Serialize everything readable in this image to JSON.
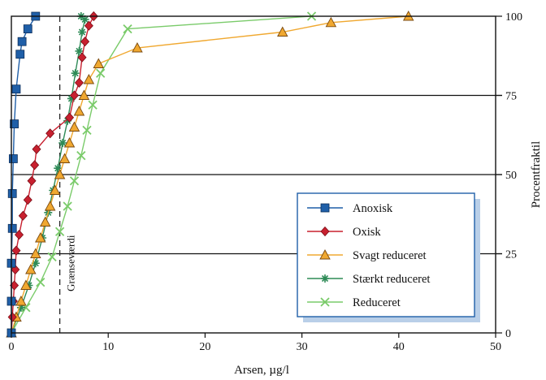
{
  "chart_data": {
    "type": "line",
    "xlabel": "Arsen, µg/l",
    "ylabel": "Procentfraktil",
    "xlim": [
      0,
      50
    ],
    "ylim": [
      0,
      100
    ],
    "x_ticks": [
      "0",
      "10",
      "20",
      "30",
      "40",
      "50"
    ],
    "y_ticks": [
      "0",
      "25",
      "50",
      "75",
      "100"
    ],
    "grid": "horizontal at 25, 50, 75",
    "legend_position": "lower-right",
    "threshold": {
      "x": 5,
      "label": "Grænseværdi",
      "style": "dashed"
    },
    "series": [
      {
        "name": "Anoxisk",
        "color": "#1f5fa8",
        "marker": "square",
        "x": [
          0,
          0,
          0,
          0.1,
          0.1,
          0.2,
          0.3,
          0.5,
          0.9,
          1.1,
          1.7,
          2.5
        ],
        "y": [
          0,
          10,
          22,
          33,
          44,
          55,
          66,
          77,
          88,
          92,
          96,
          100
        ]
      },
      {
        "name": "Oxisk",
        "color": "#c8202f",
        "marker": "diamond",
        "x": [
          0,
          0.1,
          0.2,
          0.3,
          0.4,
          0.5,
          0.8,
          1.2,
          1.7,
          2.1,
          2.4,
          2.6,
          4.0,
          6.0,
          6.5,
          7.0,
          7.3,
          7.6,
          8.0,
          8.5
        ],
        "y": [
          0,
          5,
          10,
          15,
          20,
          26,
          31,
          37,
          42,
          48,
          53,
          58,
          63,
          68,
          75,
          79,
          87,
          92,
          97,
          100
        ]
      },
      {
        "name": "Svagt reduceret",
        "color": "#f0a830",
        "marker": "triangle",
        "x": [
          0,
          0.5,
          1.0,
          1.5,
          2.0,
          2.5,
          3.0,
          3.5,
          4.0,
          4.5,
          5.0,
          5.5,
          6.0,
          6.5,
          7.0,
          7.5,
          8.0,
          9.0,
          13.0,
          28.0,
          33.0,
          41.0
        ],
        "y": [
          0,
          5,
          10,
          15,
          20,
          25,
          30,
          35,
          40,
          45,
          50,
          55,
          60,
          65,
          70,
          75,
          80,
          85,
          90,
          95,
          98,
          100
        ]
      },
      {
        "name": "Stærkt reduceret",
        "color": "#2e8b57",
        "marker": "asterisk",
        "x": [
          0,
          1.0,
          1.8,
          2.5,
          3.2,
          3.8,
          4.3,
          4.8,
          5.3,
          5.8,
          6.2,
          6.6,
          7.0,
          7.3,
          7.6,
          7.2
        ],
        "y": [
          0,
          8,
          15,
          22,
          30,
          38,
          45,
          52,
          60,
          67,
          74,
          82,
          89,
          95,
          99,
          100
        ]
      },
      {
        "name": "Reduceret",
        "color": "#7acb6a",
        "marker": "x",
        "x": [
          0,
          1.5,
          3.0,
          4.2,
          5.0,
          5.8,
          6.5,
          7.2,
          7.8,
          8.4,
          9.2,
          12.0,
          31.0
        ],
        "y": [
          0,
          8,
          16,
          24,
          32,
          40,
          48,
          56,
          64,
          72,
          82,
          96,
          100
        ]
      }
    ]
  }
}
